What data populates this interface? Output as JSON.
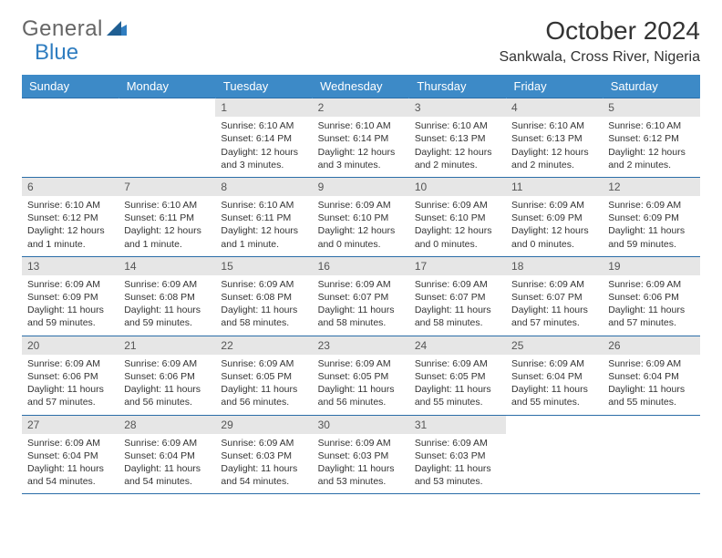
{
  "logo": {
    "text1": "General",
    "text2": "Blue",
    "mark_color": "#2f7dc0"
  },
  "title": "October 2024",
  "location": "Sankwala, Cross River, Nigeria",
  "colors": {
    "header_bg": "#3d8ac7",
    "header_text": "#ffffff",
    "daynum_bg": "#e6e6e6",
    "border": "#2b6da8",
    "text": "#333333"
  },
  "weekdays": [
    "Sunday",
    "Monday",
    "Tuesday",
    "Wednesday",
    "Thursday",
    "Friday",
    "Saturday"
  ],
  "weeks": [
    [
      null,
      null,
      {
        "n": "1",
        "sr": "Sunrise: 6:10 AM",
        "ss": "Sunset: 6:14 PM",
        "dl": "Daylight: 12 hours and 3 minutes."
      },
      {
        "n": "2",
        "sr": "Sunrise: 6:10 AM",
        "ss": "Sunset: 6:14 PM",
        "dl": "Daylight: 12 hours and 3 minutes."
      },
      {
        "n": "3",
        "sr": "Sunrise: 6:10 AM",
        "ss": "Sunset: 6:13 PM",
        "dl": "Daylight: 12 hours and 2 minutes."
      },
      {
        "n": "4",
        "sr": "Sunrise: 6:10 AM",
        "ss": "Sunset: 6:13 PM",
        "dl": "Daylight: 12 hours and 2 minutes."
      },
      {
        "n": "5",
        "sr": "Sunrise: 6:10 AM",
        "ss": "Sunset: 6:12 PM",
        "dl": "Daylight: 12 hours and 2 minutes."
      }
    ],
    [
      {
        "n": "6",
        "sr": "Sunrise: 6:10 AM",
        "ss": "Sunset: 6:12 PM",
        "dl": "Daylight: 12 hours and 1 minute."
      },
      {
        "n": "7",
        "sr": "Sunrise: 6:10 AM",
        "ss": "Sunset: 6:11 PM",
        "dl": "Daylight: 12 hours and 1 minute."
      },
      {
        "n": "8",
        "sr": "Sunrise: 6:10 AM",
        "ss": "Sunset: 6:11 PM",
        "dl": "Daylight: 12 hours and 1 minute."
      },
      {
        "n": "9",
        "sr": "Sunrise: 6:09 AM",
        "ss": "Sunset: 6:10 PM",
        "dl": "Daylight: 12 hours and 0 minutes."
      },
      {
        "n": "10",
        "sr": "Sunrise: 6:09 AM",
        "ss": "Sunset: 6:10 PM",
        "dl": "Daylight: 12 hours and 0 minutes."
      },
      {
        "n": "11",
        "sr": "Sunrise: 6:09 AM",
        "ss": "Sunset: 6:09 PM",
        "dl": "Daylight: 12 hours and 0 minutes."
      },
      {
        "n": "12",
        "sr": "Sunrise: 6:09 AM",
        "ss": "Sunset: 6:09 PM",
        "dl": "Daylight: 11 hours and 59 minutes."
      }
    ],
    [
      {
        "n": "13",
        "sr": "Sunrise: 6:09 AM",
        "ss": "Sunset: 6:09 PM",
        "dl": "Daylight: 11 hours and 59 minutes."
      },
      {
        "n": "14",
        "sr": "Sunrise: 6:09 AM",
        "ss": "Sunset: 6:08 PM",
        "dl": "Daylight: 11 hours and 59 minutes."
      },
      {
        "n": "15",
        "sr": "Sunrise: 6:09 AM",
        "ss": "Sunset: 6:08 PM",
        "dl": "Daylight: 11 hours and 58 minutes."
      },
      {
        "n": "16",
        "sr": "Sunrise: 6:09 AM",
        "ss": "Sunset: 6:07 PM",
        "dl": "Daylight: 11 hours and 58 minutes."
      },
      {
        "n": "17",
        "sr": "Sunrise: 6:09 AM",
        "ss": "Sunset: 6:07 PM",
        "dl": "Daylight: 11 hours and 58 minutes."
      },
      {
        "n": "18",
        "sr": "Sunrise: 6:09 AM",
        "ss": "Sunset: 6:07 PM",
        "dl": "Daylight: 11 hours and 57 minutes."
      },
      {
        "n": "19",
        "sr": "Sunrise: 6:09 AM",
        "ss": "Sunset: 6:06 PM",
        "dl": "Daylight: 11 hours and 57 minutes."
      }
    ],
    [
      {
        "n": "20",
        "sr": "Sunrise: 6:09 AM",
        "ss": "Sunset: 6:06 PM",
        "dl": "Daylight: 11 hours and 57 minutes."
      },
      {
        "n": "21",
        "sr": "Sunrise: 6:09 AM",
        "ss": "Sunset: 6:06 PM",
        "dl": "Daylight: 11 hours and 56 minutes."
      },
      {
        "n": "22",
        "sr": "Sunrise: 6:09 AM",
        "ss": "Sunset: 6:05 PM",
        "dl": "Daylight: 11 hours and 56 minutes."
      },
      {
        "n": "23",
        "sr": "Sunrise: 6:09 AM",
        "ss": "Sunset: 6:05 PM",
        "dl": "Daylight: 11 hours and 56 minutes."
      },
      {
        "n": "24",
        "sr": "Sunrise: 6:09 AM",
        "ss": "Sunset: 6:05 PM",
        "dl": "Daylight: 11 hours and 55 minutes."
      },
      {
        "n": "25",
        "sr": "Sunrise: 6:09 AM",
        "ss": "Sunset: 6:04 PM",
        "dl": "Daylight: 11 hours and 55 minutes."
      },
      {
        "n": "26",
        "sr": "Sunrise: 6:09 AM",
        "ss": "Sunset: 6:04 PM",
        "dl": "Daylight: 11 hours and 55 minutes."
      }
    ],
    [
      {
        "n": "27",
        "sr": "Sunrise: 6:09 AM",
        "ss": "Sunset: 6:04 PM",
        "dl": "Daylight: 11 hours and 54 minutes."
      },
      {
        "n": "28",
        "sr": "Sunrise: 6:09 AM",
        "ss": "Sunset: 6:04 PM",
        "dl": "Daylight: 11 hours and 54 minutes."
      },
      {
        "n": "29",
        "sr": "Sunrise: 6:09 AM",
        "ss": "Sunset: 6:03 PM",
        "dl": "Daylight: 11 hours and 54 minutes."
      },
      {
        "n": "30",
        "sr": "Sunrise: 6:09 AM",
        "ss": "Sunset: 6:03 PM",
        "dl": "Daylight: 11 hours and 53 minutes."
      },
      {
        "n": "31",
        "sr": "Sunrise: 6:09 AM",
        "ss": "Sunset: 6:03 PM",
        "dl": "Daylight: 11 hours and 53 minutes."
      },
      null,
      null
    ]
  ]
}
